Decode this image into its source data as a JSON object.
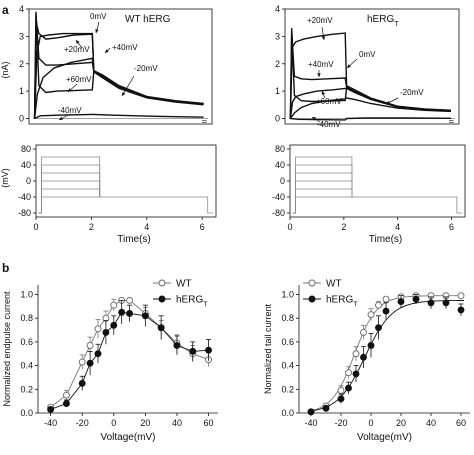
{
  "panel_labels": {
    "a": "a",
    "b": "b"
  },
  "colors": {
    "ink": "#111111",
    "grid": "#000000",
    "gray_trace": "#6a6a6a",
    "step": "#8a8a8a",
    "wt_marker": "#ffffff",
    "herg_marker": "#111111"
  },
  "chart_data": [
    {
      "type": "line",
      "panel": "a-top-left",
      "title": "WT hERG",
      "ylabel": "(nA)",
      "yticks": [
        0,
        1,
        2,
        3,
        4
      ],
      "ylim": [
        -0.2,
        4
      ],
      "xlim": [
        0,
        6.5
      ],
      "annotations": [
        "0mV",
        "+20mV",
        "+40mV",
        "+60mV",
        "-20mV",
        "-40mV"
      ],
      "series": [
        {
          "name": "0mV",
          "x": [
            0.2,
            0.28,
            0.4,
            0.7,
            1.2,
            1.8,
            2.25,
            2.3,
            2.6,
            3.2,
            4.2,
            5.2,
            6.2
          ],
          "y": [
            0,
            2.4,
            3.0,
            3.05,
            3.1,
            3.1,
            3.1,
            1.75,
            1.6,
            1.2,
            0.8,
            0.65,
            0.55
          ]
        },
        {
          "name": "+20mV",
          "x": [
            0.2,
            0.26,
            0.35,
            0.6,
            1.0,
            1.6,
            2.25,
            2.3,
            2.6,
            3.2,
            4.2,
            5.2,
            6.2
          ],
          "y": [
            0,
            3.5,
            3.1,
            2.9,
            2.95,
            3.05,
            3.08,
            1.72,
            1.55,
            1.15,
            0.78,
            0.63,
            0.54
          ]
        },
        {
          "name": "+40mV",
          "x": [
            0.2,
            0.25,
            0.35,
            0.6,
            1.0,
            1.6,
            2.25,
            2.3,
            2.6,
            3.2,
            4.2,
            5.2,
            6.2
          ],
          "y": [
            0,
            3.8,
            2.2,
            1.95,
            1.95,
            2.0,
            2.05,
            1.72,
            1.55,
            1.15,
            0.78,
            0.63,
            0.54
          ]
        },
        {
          "name": "+60mV",
          "x": [
            0.2,
            0.25,
            0.35,
            0.6,
            1.0,
            1.6,
            2.25,
            2.3,
            2.6,
            3.2,
            4.2,
            5.2,
            6.2
          ],
          "y": [
            0,
            3.9,
            1.2,
            0.95,
            1.0,
            1.02,
            1.05,
            1.72,
            1.55,
            1.15,
            0.78,
            0.63,
            0.54
          ]
        },
        {
          "name": "-20mV",
          "x": [
            0.2,
            0.3,
            0.5,
            0.9,
            1.5,
            2.25,
            2.3,
            2.6,
            3.2,
            4.2,
            5.2,
            6.2
          ],
          "y": [
            0,
            0.9,
            1.5,
            1.85,
            2.05,
            2.2,
            1.7,
            1.5,
            1.1,
            0.75,
            0.6,
            0.5
          ]
        },
        {
          "name": "-40mV",
          "x": [
            0.2,
            0.4,
            1.0,
            2.25,
            2.3,
            3.0,
            4.5,
            6.2
          ],
          "y": [
            0,
            0.1,
            0.12,
            0.15,
            0.15,
            0.12,
            0.08,
            0.05
          ]
        }
      ]
    },
    {
      "type": "line",
      "panel": "a-top-right",
      "title": "hERG",
      "title_sub": "T",
      "yticks": [
        0,
        1,
        2,
        3,
        4
      ],
      "ylim": [
        -0.2,
        4
      ],
      "xlim": [
        0,
        6.5
      ],
      "annotations": [
        "+20mV",
        "+40mV",
        "0mV",
        "+60mV",
        "-20mV",
        "-40mV"
      ],
      "series": [
        {
          "name": "+20mV",
          "x": [
            0.2,
            0.27,
            0.4,
            0.7,
            1.2,
            1.8,
            2.25,
            2.3,
            2.6,
            3.2,
            4.2,
            5.2,
            6.2
          ],
          "y": [
            0,
            2.6,
            2.8,
            2.9,
            3.0,
            3.08,
            3.12,
            1.2,
            1.05,
            0.75,
            0.45,
            0.35,
            0.3
          ]
        },
        {
          "name": "+40mV",
          "x": [
            0.2,
            0.25,
            0.35,
            0.6,
            1.0,
            1.6,
            2.25,
            2.3,
            2.6,
            3.2,
            4.2,
            5.2,
            6.2
          ],
          "y": [
            0,
            3.2,
            1.55,
            1.45,
            1.42,
            1.45,
            1.48,
            1.15,
            1.0,
            0.72,
            0.44,
            0.34,
            0.3
          ]
        },
        {
          "name": "0mV",
          "x": [
            0.2,
            0.28,
            0.4,
            0.7,
            1.2,
            1.8,
            2.25,
            2.3,
            2.6,
            3.2,
            4.2,
            5.2,
            6.2
          ],
          "y": [
            0,
            0.6,
            0.8,
            0.9,
            1.0,
            1.05,
            1.1,
            1.1,
            0.95,
            0.7,
            0.43,
            0.33,
            0.29
          ]
        },
        {
          "name": "+60mV",
          "x": [
            0.2,
            0.25,
            0.35,
            0.6,
            1.0,
            1.6,
            2.25,
            2.3,
            2.6,
            3.2,
            4.2,
            5.2,
            6.2
          ],
          "y": [
            0,
            3.3,
            0.85,
            0.65,
            0.62,
            0.64,
            0.66,
            1.12,
            0.98,
            0.7,
            0.43,
            0.33,
            0.29
          ]
        },
        {
          "name": "-20mV",
          "x": [
            0.2,
            0.35,
            0.6,
            1.0,
            1.6,
            2.25,
            2.3,
            2.6,
            3.2,
            4.2,
            5.2,
            6.2
          ],
          "y": [
            0,
            0.2,
            0.4,
            0.55,
            0.65,
            0.72,
            0.75,
            0.7,
            0.55,
            0.38,
            0.3,
            0.26
          ]
        },
        {
          "name": "-40mV",
          "x": [
            0.2,
            0.5,
            1.0,
            2.25,
            2.3,
            3.0,
            4.5,
            6.2
          ],
          "y": [
            0,
            -0.03,
            -0.04,
            -0.05,
            0.0,
            0.02,
            0.02,
            0.01
          ]
        }
      ]
    },
    {
      "type": "line",
      "panel": "a-bottom-left",
      "ylabel": "(mV)",
      "xlabel": "Time(s)",
      "yticks": [
        80,
        40,
        0,
        -40,
        -80
      ],
      "xticks": [
        0,
        2,
        4,
        6
      ],
      "ylim": [
        -90,
        90
      ],
      "xlim": [
        0,
        6.5
      ],
      "holding_mV": -80,
      "tail_mV": -40,
      "steps_mV": [
        -40,
        -20,
        0,
        20,
        40,
        60
      ],
      "step_time_s": [
        0.2,
        2.3
      ],
      "end_time_s": 6.2
    },
    {
      "type": "line",
      "panel": "a-bottom-right",
      "xlabel": "Time(s)",
      "yticks": [
        80,
        40,
        0,
        -40,
        -80
      ],
      "xticks": [
        0,
        2,
        4,
        6
      ],
      "ylim": [
        -90,
        90
      ],
      "xlim": [
        0,
        6.5
      ],
      "holding_mV": -80,
      "tail_mV": -40,
      "steps_mV": [
        -40,
        -20,
        0,
        20,
        40,
        60
      ],
      "step_time_s": [
        0.2,
        2.3
      ],
      "end_time_s": 6.2
    },
    {
      "type": "scatter",
      "panel": "b-left",
      "xlabel": "Voltage(mV)",
      "ylabel": "Normalized  endpulse current",
      "xticks": [
        -40,
        -20,
        0,
        20,
        40,
        60
      ],
      "yticks": [
        0.0,
        0.2,
        0.4,
        0.6,
        0.8,
        1.0
      ],
      "xlim": [
        -48,
        66
      ],
      "ylim": [
        0,
        1.08
      ],
      "legend": [
        "WT",
        "hERG",
        "T"
      ],
      "series": [
        {
          "name": "WT",
          "marker": "open",
          "x": [
            -40,
            -30,
            -20,
            -15,
            -10,
            -5,
            0,
            5,
            10,
            20,
            30,
            40,
            50,
            60
          ],
          "y": [
            0.05,
            0.15,
            0.43,
            0.57,
            0.71,
            0.8,
            0.91,
            0.95,
            0.95,
            0.84,
            0.72,
            0.59,
            0.5,
            0.45
          ],
          "err": [
            0.01,
            0.04,
            0.06,
            0.07,
            0.08,
            0.06,
            0.05,
            0.02,
            0.02,
            0.05,
            0.06,
            0.07,
            0.07,
            0.06
          ]
        },
        {
          "name": "hERG",
          "marker": "filled",
          "x": [
            -40,
            -30,
            -20,
            -15,
            -10,
            -5,
            0,
            5,
            10,
            20,
            30,
            40,
            50,
            60
          ],
          "y": [
            0.03,
            0.08,
            0.25,
            0.42,
            0.5,
            0.68,
            0.74,
            0.85,
            0.84,
            0.82,
            0.72,
            0.57,
            0.52,
            0.53
          ],
          "err": [
            0.02,
            0.03,
            0.06,
            0.1,
            0.08,
            0.1,
            0.08,
            0.1,
            0.07,
            0.09,
            0.1,
            0.08,
            0.08,
            0.09
          ]
        }
      ]
    },
    {
      "type": "scatter",
      "panel": "b-right",
      "xlabel": "Voltage(mV)",
      "ylabel": "Normalized tail current",
      "xticks": [
        -40,
        -20,
        0,
        20,
        40,
        60
      ],
      "yticks": [
        0.0,
        0.2,
        0.4,
        0.6,
        0.8,
        1.0
      ],
      "xlim": [
        -48,
        66
      ],
      "ylim": [
        0,
        1.08
      ],
      "legend": [
        "WT",
        "hERG",
        "T"
      ],
      "series": [
        {
          "name": "WT",
          "marker": "open",
          "x": [
            -40,
            -30,
            -20,
            -15,
            -10,
            -5,
            0,
            5,
            10,
            20,
            30,
            40,
            50,
            60
          ],
          "y": [
            0.01,
            0.06,
            0.19,
            0.34,
            0.5,
            0.68,
            0.83,
            0.91,
            0.96,
            0.98,
            0.99,
            0.99,
            0.99,
            0.99
          ],
          "err": [
            0.01,
            0.02,
            0.04,
            0.05,
            0.06,
            0.06,
            0.05,
            0.03,
            0.02,
            0.01,
            0.01,
            0.01,
            0.01,
            0.01
          ]
        },
        {
          "name": "hERG",
          "marker": "filled",
          "x": [
            -40,
            -30,
            -20,
            -15,
            -10,
            -5,
            0,
            5,
            10,
            20,
            30,
            40,
            50,
            60
          ],
          "y": [
            0.01,
            0.04,
            0.12,
            0.21,
            0.33,
            0.47,
            0.57,
            0.72,
            0.86,
            0.94,
            0.96,
            0.93,
            0.93,
            0.87
          ],
          "err": [
            0.01,
            0.02,
            0.04,
            0.05,
            0.07,
            0.09,
            0.1,
            0.1,
            0.07,
            0.05,
            0.04,
            0.05,
            0.05,
            0.05
          ]
        }
      ]
    }
  ]
}
